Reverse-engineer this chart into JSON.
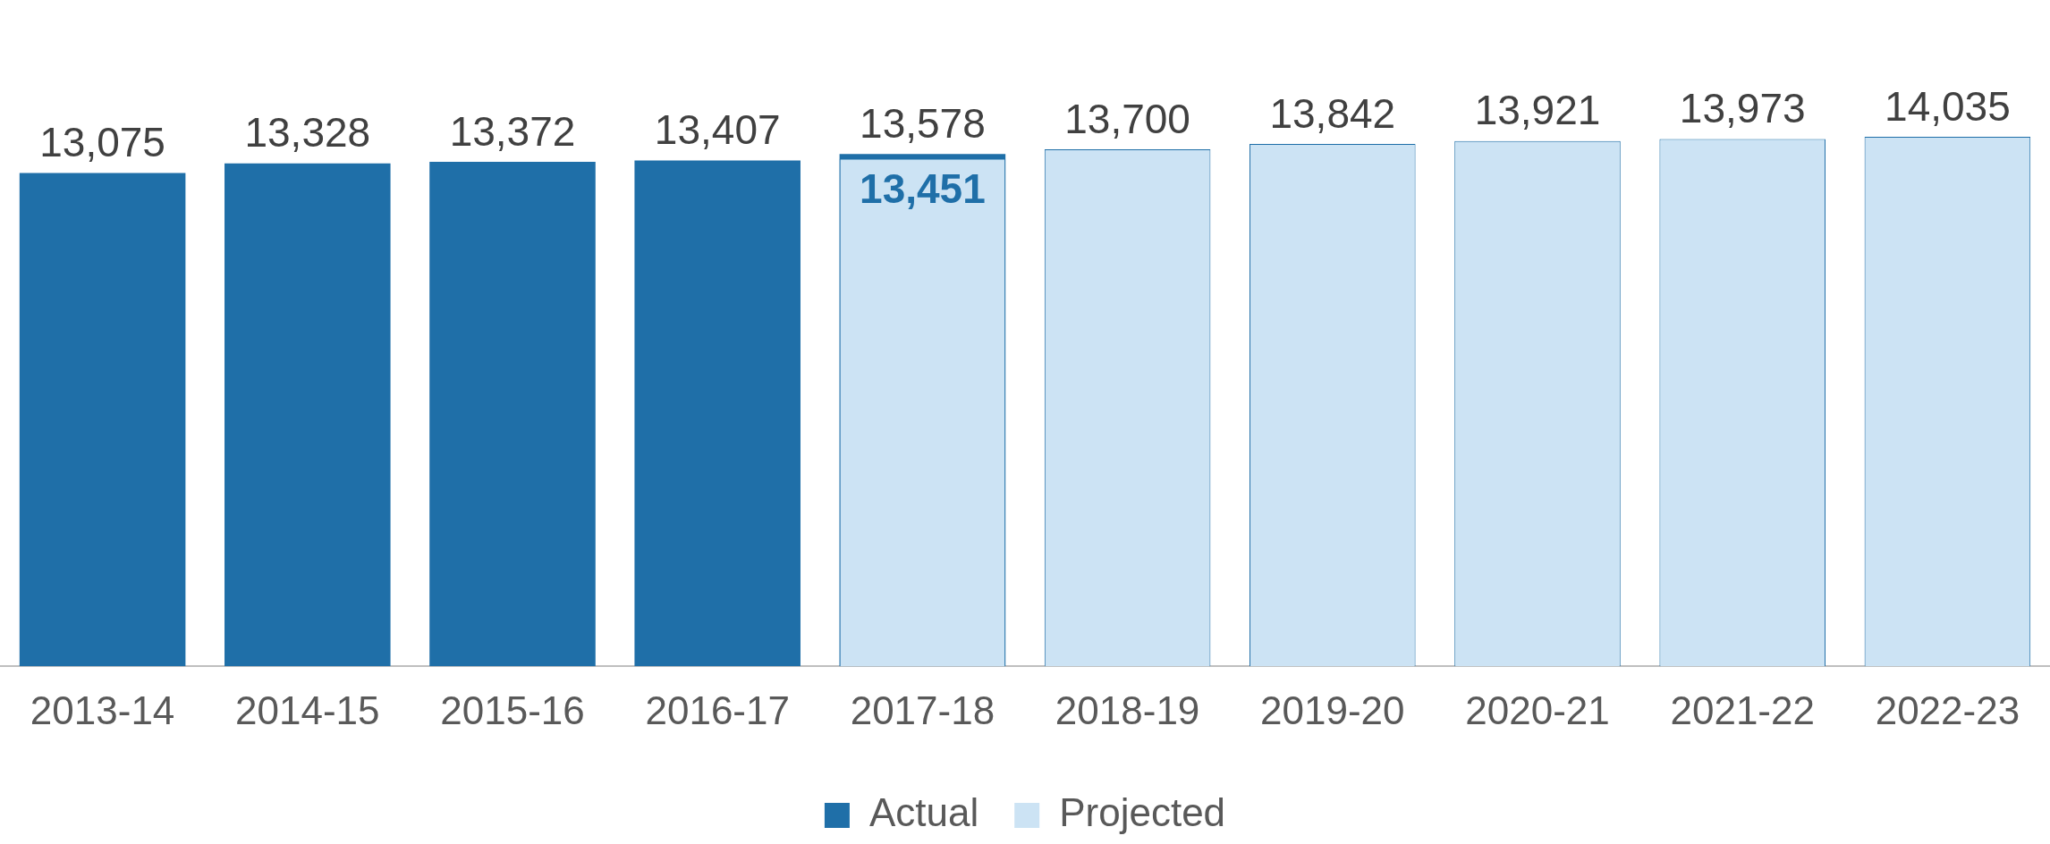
{
  "chart_data": {
    "type": "bar",
    "categories": [
      "2013-14",
      "2014-15",
      "2015-16",
      "2016-17",
      "2017-18",
      "2018-19",
      "2019-20",
      "2020-21",
      "2021-22",
      "2022-23"
    ],
    "series": [
      {
        "name": "Actual",
        "color": "#1f6fa8",
        "values": [
          13075,
          13328,
          13372,
          13407,
          13578,
          null,
          null,
          null,
          null,
          null
        ],
        "value_labels": [
          "13,075",
          "13,328",
          "13,372",
          "13,407",
          "13,578",
          null,
          null,
          null,
          null,
          null
        ]
      },
      {
        "name": "Projected",
        "color": "#cce3f4",
        "values": [
          null,
          null,
          null,
          null,
          13451,
          13700,
          13842,
          13921,
          13973,
          14035
        ],
        "value_labels": [
          null,
          null,
          null,
          null,
          "13,451",
          "13,700",
          "13,842",
          "13,921",
          "13,973",
          "14,035"
        ]
      }
    ],
    "tick_labels": "x",
    "legend": "bottom",
    "grid": false
  }
}
